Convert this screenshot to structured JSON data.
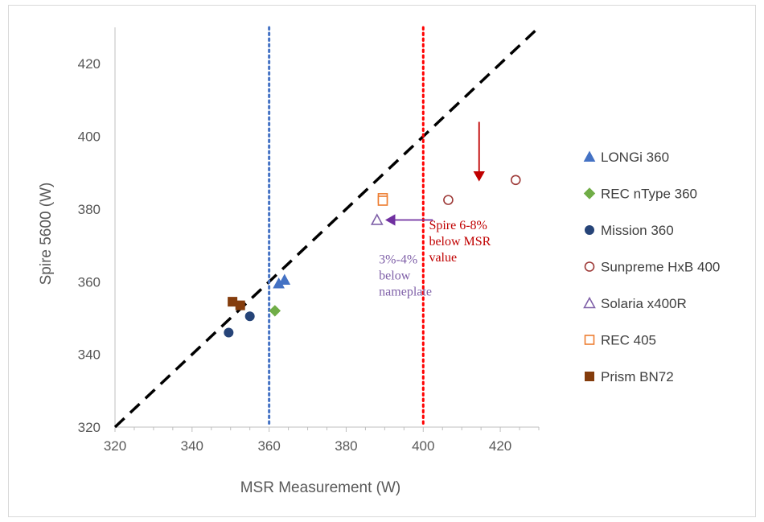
{
  "chart_data": {
    "type": "scatter",
    "title": "",
    "xlabel": "MSR Measurement (W)",
    "ylabel": "Spire 5600 (W)",
    "xlim": [
      320,
      430
    ],
    "ylim": [
      320,
      430
    ],
    "xticks": [
      320,
      340,
      360,
      380,
      400,
      420
    ],
    "yticks": [
      320,
      340,
      360,
      380,
      400,
      420
    ],
    "x_tick_labels": [
      "320",
      "340",
      "360",
      "380",
      "400",
      "420"
    ],
    "y_tick_labels": [
      "320",
      "340",
      "360",
      "380",
      "400",
      "420"
    ],
    "grid": false,
    "legend_position": "right",
    "series": [
      {
        "name": "LONGi 360",
        "marker": "triangle",
        "filled": true,
        "color": "#4472c4",
        "points": [
          [
            362.5,
            359.5
          ],
          [
            364,
            360.5
          ]
        ]
      },
      {
        "name": "REC nType 360",
        "marker": "diamond",
        "filled": true,
        "color": "#70ad47",
        "points": [
          [
            361.5,
            352
          ]
        ]
      },
      {
        "name": "Mission 360",
        "marker": "circle",
        "filled": true,
        "color": "#264478",
        "points": [
          [
            349.5,
            346
          ],
          [
            355,
            350.5
          ]
        ]
      },
      {
        "name": "Sunpreme HxB 400",
        "marker": "circle",
        "filled": false,
        "color": "#9e3a38",
        "points": [
          [
            406.5,
            382.5
          ],
          [
            424,
            388
          ]
        ]
      },
      {
        "name": "Solaria x400R",
        "marker": "triangle",
        "filled": false,
        "color": "#7f60a8",
        "points": [
          [
            388,
            377
          ]
        ]
      },
      {
        "name": "REC 405",
        "marker": "square",
        "filled": false,
        "color": "#ed7d31",
        "points": [
          [
            389.5,
            383
          ],
          [
            389.5,
            382.3
          ]
        ]
      },
      {
        "name": "Prism BN72",
        "marker": "square",
        "filled": true,
        "color": "#843c0c",
        "points": [
          [
            350.5,
            354.5
          ],
          [
            352.5,
            353.5
          ]
        ]
      }
    ],
    "reference_lines": [
      {
        "kind": "diagonal",
        "from": [
          320,
          320
        ],
        "to": [
          430,
          430
        ],
        "color": "#000000",
        "style": "dashed"
      },
      {
        "kind": "vertical",
        "x": 360,
        "color": "#4472c4",
        "style": "dotted"
      },
      {
        "kind": "vertical",
        "x": 400,
        "color": "#ff0000",
        "style": "dotted"
      }
    ],
    "annotations": [
      {
        "lines": [
          "Spire 6-8%",
          "below MSR",
          "value"
        ],
        "color": "#c00000",
        "at": [
          401.5,
          374.5
        ]
      },
      {
        "lines": [
          "3%-4%",
          "below",
          "nameplate"
        ],
        "color": "#7f60a8",
        "at": [
          388.5,
          365
        ]
      }
    ],
    "arrows": [
      {
        "from": [
          414.5,
          404
        ],
        "to": [
          414.5,
          388
        ],
        "color": "#c00000"
      },
      {
        "from": [
          402.5,
          377
        ],
        "to": [
          390.5,
          377
        ],
        "color": "#7030a0"
      }
    ]
  }
}
